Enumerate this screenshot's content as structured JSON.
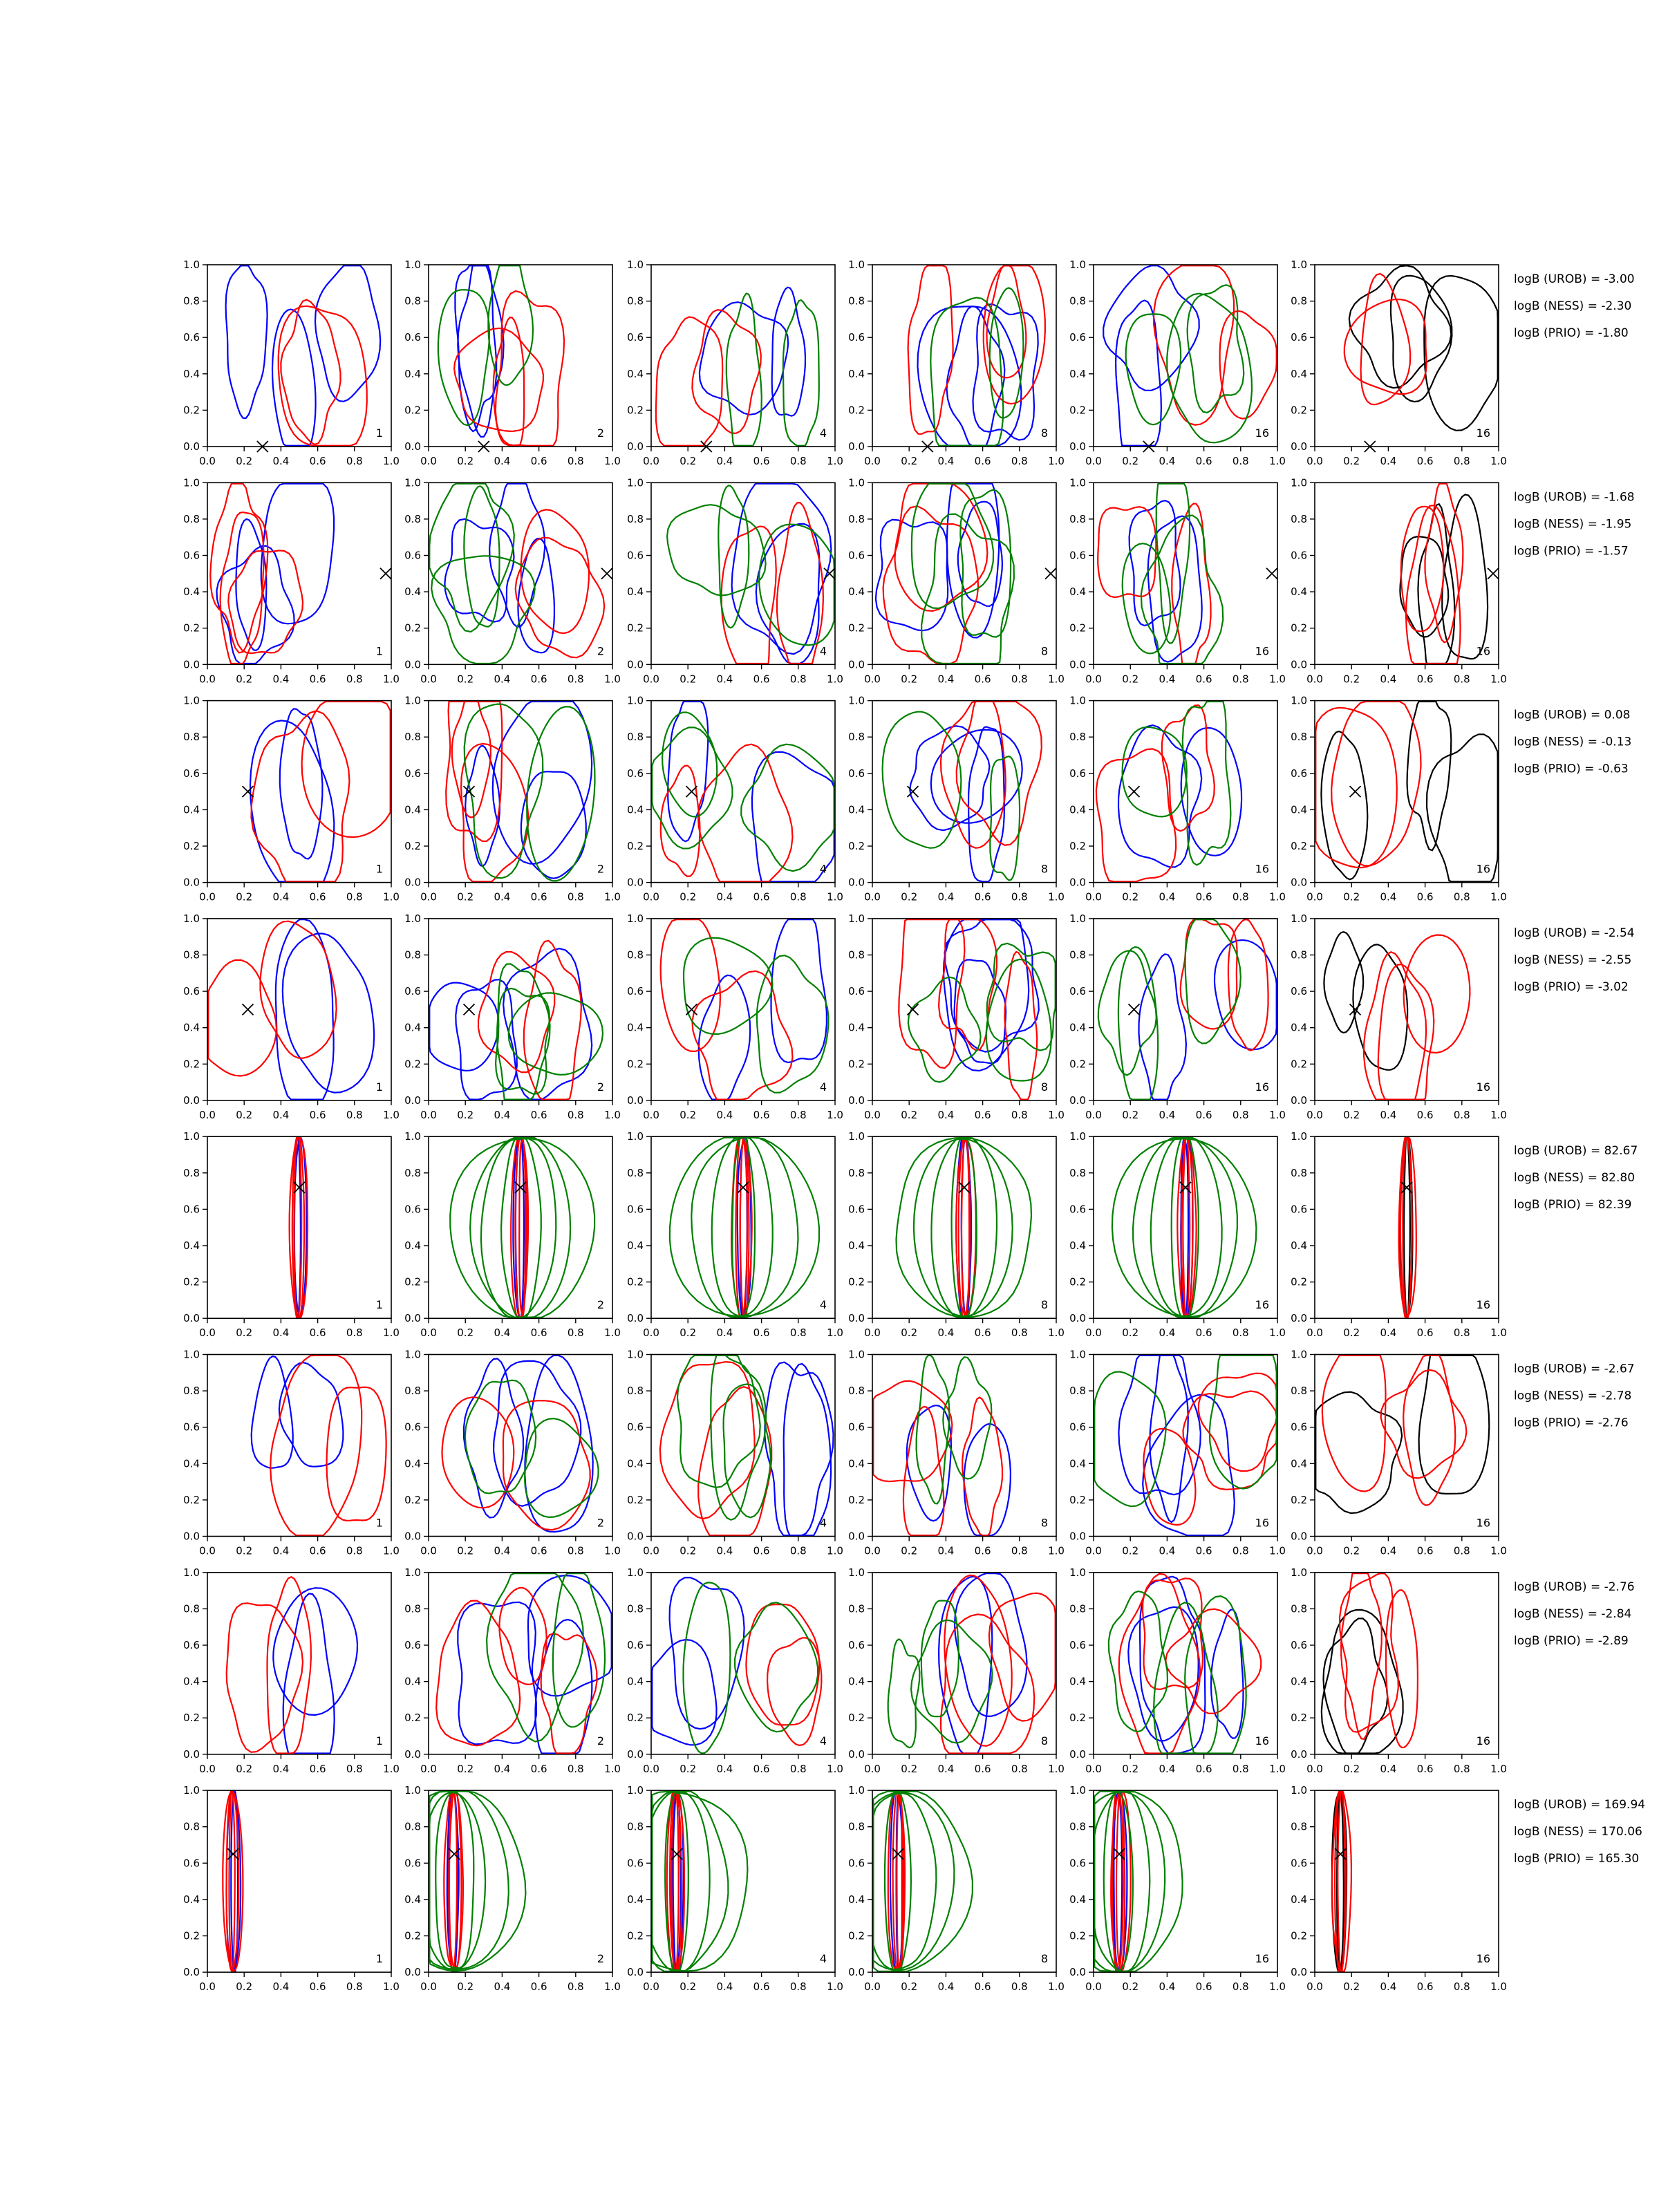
{
  "chart_data": {
    "type": "contour-grid",
    "grid": {
      "rows": 8,
      "cols": 6
    },
    "xlim": [
      0,
      1
    ],
    "ylim": [
      0,
      1
    ],
    "xticks": [
      "0.0",
      "0.2",
      "0.4",
      "0.6",
      "0.8",
      "1.0"
    ],
    "yticks": [
      "0.0",
      "0.2",
      "0.4",
      "0.6",
      "0.8",
      "1.0"
    ],
    "column_labels": [
      "1",
      "2",
      "4",
      "8",
      "16",
      "16"
    ],
    "colors": {
      "red": "#ff0000",
      "blue": "#0000ff",
      "green": "#008000",
      "black": "#000000"
    },
    "column_series_colors": [
      [
        "blue",
        "red"
      ],
      [
        "blue",
        "red",
        "green"
      ],
      [
        "blue",
        "red",
        "green"
      ],
      [
        "blue",
        "red",
        "green"
      ],
      [
        "blue",
        "red",
        "green"
      ],
      [
        "black",
        "red"
      ]
    ],
    "rows": [
      {
        "marker": {
          "x": 0.3,
          "y": 0.0
        },
        "logB": [
          "logB (UROB) = -3.00",
          "logB (NESS) = -2.30",
          "logB (PRIO) = -1.80"
        ]
      },
      {
        "marker": {
          "x": 0.97,
          "y": 0.5
        },
        "logB": [
          "logB (UROB) = -1.68",
          "logB (NESS) = -1.95",
          "logB (PRIO) = -1.57"
        ]
      },
      {
        "marker": {
          "x": 0.22,
          "y": 0.5
        },
        "logB": [
          "logB (UROB) = 0.08",
          "logB (NESS) = -0.13",
          "logB (PRIO) = -0.63"
        ]
      },
      {
        "marker": {
          "x": 0.22,
          "y": 0.5
        },
        "logB": [
          "logB (UROB) = -2.54",
          "logB (NESS) = -2.55",
          "logB (PRIO) = -3.02"
        ]
      },
      {
        "marker": {
          "x": 0.5,
          "y": 0.72
        },
        "logB": [
          "logB (UROB) = 82.67",
          "logB (NESS) = 82.80",
          "logB (PRIO) = 82.39"
        ]
      },
      {
        "marker": null,
        "logB": [
          "logB (UROB) = -2.67",
          "logB (NESS) = -2.78",
          "logB (PRIO) = -2.76"
        ]
      },
      {
        "marker": null,
        "logB": [
          "logB (UROB) = -2.76",
          "logB (NESS) = -2.84",
          "logB (PRIO) = -2.89"
        ]
      },
      {
        "marker": {
          "x": 0.14,
          "y": 0.65
        },
        "logB": [
          "logB (UROB) = 169.94",
          "logB (NESS) = 170.06",
          "logB (PRIO) = 165.30"
        ]
      }
    ]
  }
}
